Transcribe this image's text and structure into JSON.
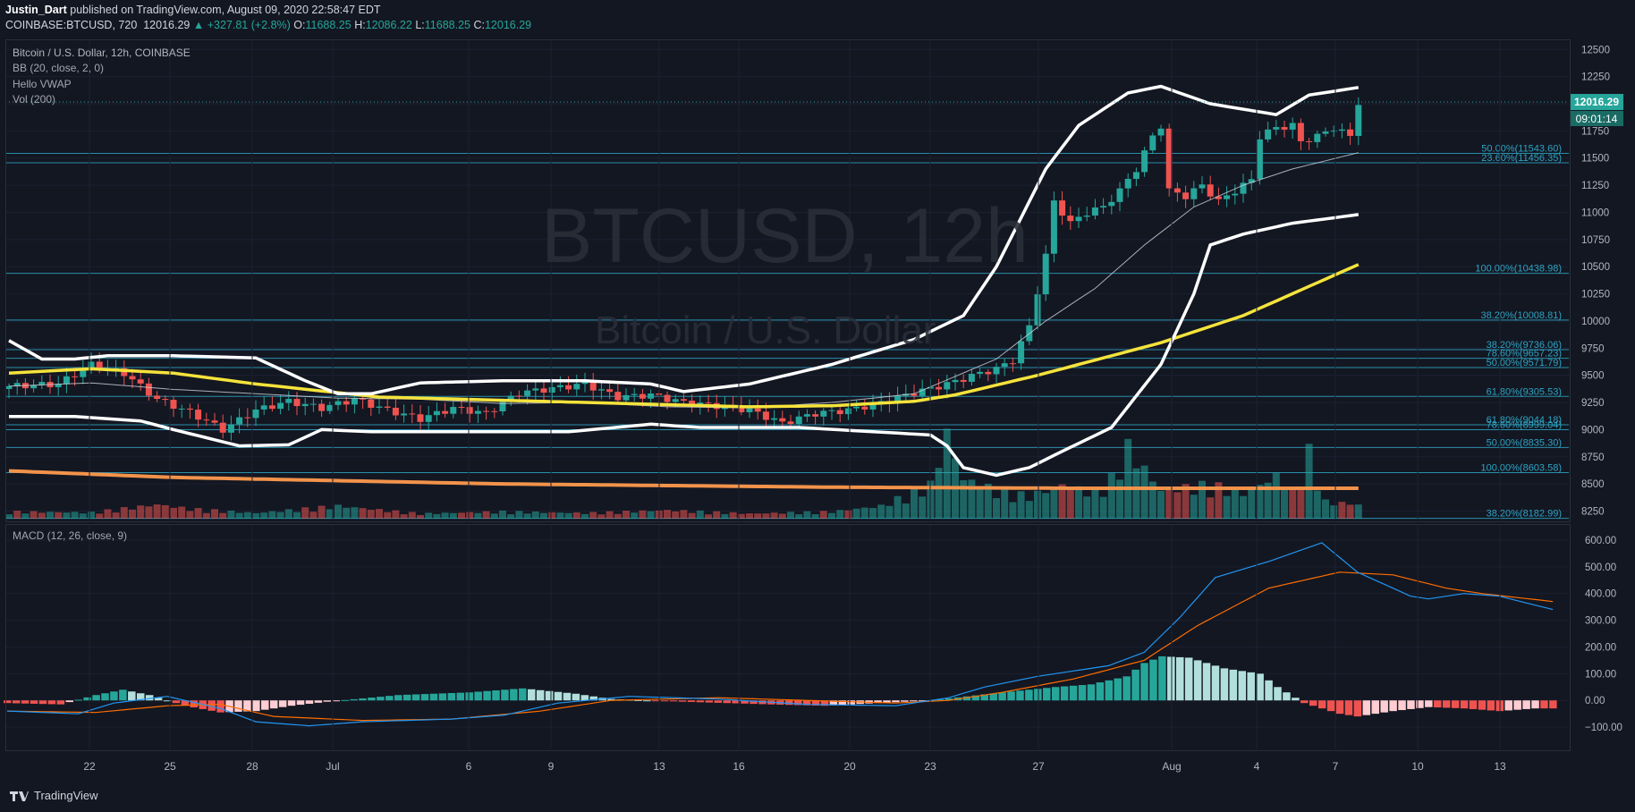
{
  "header": {
    "author": "Justin_Dart",
    "published": "published on TradingView.com, August 09, 2020 22:58:47 EDT",
    "symbol": "COINBASE:BTCUSD, 720",
    "last": "12016.29",
    "change": "▲ +327.81 (+2.8%)",
    "o_label": "O:",
    "o": "11688.25",
    "h_label": "H:",
    "h": "12086.22",
    "l_label": "L:",
    "l": "11688.25",
    "c_label": "C:",
    "c": "12016.29"
  },
  "legend": {
    "title": "Bitcoin / U.S. Dollar, 12h, COINBASE",
    "bb": "BB (20, close, 2, 0)",
    "vwap": "Hello VWAP",
    "vol": "Vol (200)",
    "macd": "MACD (12, 26, close, 9)"
  },
  "watermark": {
    "big": "BTCUSD, 12h",
    "small": "Bitcoin / U.S. Dollar"
  },
  "footer": {
    "brand": "TradingView"
  },
  "colors": {
    "up": "#26a69a",
    "down": "#ef5350",
    "fib": "#2ea3c2",
    "bb": "#ffffff",
    "ma": "#f5e33b",
    "vwap": "#f2934b",
    "macd": "#2196f3",
    "signal": "#ff6d00"
  },
  "chart_data": [
    {
      "type": "line",
      "title": "Bitcoin / U.S. Dollar, 12h, COINBASE",
      "ylim": [
        8180,
        12560
      ],
      "y_ticks": [
        12500,
        12250,
        12000,
        11750,
        11500,
        11250,
        11000,
        10750,
        10500,
        10250,
        10000,
        9750,
        9500,
        9250,
        9000,
        8750,
        8500,
        8250
      ],
      "x_ticks": [
        "22",
        "25",
        "28",
        "Jul",
        "6",
        "9",
        "13",
        "16",
        "20",
        "23",
        "27",
        "Aug",
        "4",
        "7",
        "10",
        "13"
      ],
      "price_label": "12016.29",
      "countdown_label": "09:01:14",
      "fib_levels": [
        {
          "label": "50.00%(11543.60)",
          "value": 11543.6
        },
        {
          "label": "23.60%(11456.35)",
          "value": 11456.35
        },
        {
          "label": "100.00%(10438.98)",
          "value": 10438.98
        },
        {
          "label": "38.20%(10008.81)",
          "value": 10008.81
        },
        {
          "label": "38.20%(9736.06)",
          "value": 9736.06
        },
        {
          "label": "78.60%(9657.23)",
          "value": 9657.23
        },
        {
          "label": "50.00%(9571.79)",
          "value": 9571.79
        },
        {
          "label": "61.80%(9305.53)",
          "value": 9305.53
        },
        {
          "label": "61.80%(9044.18)",
          "value": 9044.18
        },
        {
          "label": "78.60%(8999.04)",
          "value": 8999.04
        },
        {
          "label": "50.00%(8835.30)",
          "value": 8835.3
        },
        {
          "label": "100.00%(8603.58)",
          "value": 8603.58
        },
        {
          "label": "38.20%(8182.99)",
          "value": 8182.99
        }
      ],
      "candle_anchors": [
        [
          0,
          9400
        ],
        [
          6,
          9420
        ],
        [
          10,
          9600
        ],
        [
          14,
          9520
        ],
        [
          18,
          9280
        ],
        [
          22,
          9160
        ],
        [
          26,
          9000
        ],
        [
          30,
          9180
        ],
        [
          34,
          9260
        ],
        [
          38,
          9200
        ],
        [
          42,
          9280
        ],
        [
          46,
          9180
        ],
        [
          50,
          9100
        ],
        [
          54,
          9200
        ],
        [
          58,
          9150
        ],
        [
          62,
          9340
        ],
        [
          66,
          9380
        ],
        [
          70,
          9420
        ],
        [
          74,
          9300
        ],
        [
          78,
          9320
        ],
        [
          82,
          9250
        ],
        [
          86,
          9220
        ],
        [
          90,
          9180
        ],
        [
          94,
          9060
        ],
        [
          98,
          9150
        ],
        [
          102,
          9180
        ],
        [
          106,
          9250
        ],
        [
          110,
          9340
        ],
        [
          114,
          9420
        ],
        [
          118,
          9520
        ],
        [
          120,
          9560
        ],
        [
          122,
          9640
        ],
        [
          124,
          9950
        ],
        [
          126,
          10600
        ],
        [
          127,
          11100
        ],
        [
          129,
          10900
        ],
        [
          131,
          11000
        ],
        [
          133,
          11050
        ],
        [
          135,
          11200
        ],
        [
          137,
          11400
        ],
        [
          139,
          11700
        ],
        [
          140,
          11800
        ],
        [
          141,
          11200
        ],
        [
          143,
          11150
        ],
        [
          145,
          11250
        ],
        [
          147,
          11100
        ],
        [
          149,
          11200
        ],
        [
          151,
          11300
        ],
        [
          152,
          11700
        ],
        [
          154,
          11780
        ],
        [
          156,
          11800
        ],
        [
          157,
          11650
        ],
        [
          159,
          11700
        ],
        [
          161,
          11780
        ],
        [
          163,
          11700
        ],
        [
          164,
          12016.29
        ]
      ],
      "bb_upper_anchors": [
        [
          0,
          9820
        ],
        [
          4,
          9650
        ],
        [
          8,
          9650
        ],
        [
          12,
          9680
        ],
        [
          20,
          9680
        ],
        [
          30,
          9660
        ],
        [
          36,
          9450
        ],
        [
          40,
          9330
        ],
        [
          44,
          9330
        ],
        [
          50,
          9430
        ],
        [
          60,
          9450
        ],
        [
          70,
          9450
        ],
        [
          78,
          9420
        ],
        [
          82,
          9350
        ],
        [
          90,
          9420
        ],
        [
          100,
          9600
        ],
        [
          110,
          9830
        ],
        [
          116,
          10050
        ],
        [
          120,
          10500
        ],
        [
          126,
          11400
        ],
        [
          130,
          11800
        ],
        [
          136,
          12100
        ],
        [
          140,
          12160
        ],
        [
          146,
          12000
        ],
        [
          150,
          11950
        ],
        [
          154,
          11900
        ],
        [
          158,
          12080
        ],
        [
          164,
          12150
        ]
      ],
      "bb_lower_anchors": [
        [
          0,
          9120
        ],
        [
          8,
          9120
        ],
        [
          16,
          9080
        ],
        [
          20,
          9000
        ],
        [
          28,
          8850
        ],
        [
          34,
          8860
        ],
        [
          38,
          9000
        ],
        [
          44,
          8980
        ],
        [
          56,
          8980
        ],
        [
          68,
          8980
        ],
        [
          78,
          9050
        ],
        [
          84,
          9020
        ],
        [
          96,
          9020
        ],
        [
          112,
          8950
        ],
        [
          114,
          8850
        ],
        [
          116,
          8650
        ],
        [
          120,
          8580
        ],
        [
          124,
          8650
        ],
        [
          128,
          8800
        ],
        [
          134,
          9020
        ],
        [
          140,
          9600
        ],
        [
          144,
          10250
        ],
        [
          146,
          10700
        ],
        [
          150,
          10800
        ],
        [
          156,
          10900
        ],
        [
          164,
          10980
        ]
      ],
      "bb_mid_anchors": [
        [
          0,
          9400
        ],
        [
          10,
          9430
        ],
        [
          20,
          9370
        ],
        [
          30,
          9330
        ],
        [
          40,
          9290
        ],
        [
          50,
          9280
        ],
        [
          60,
          9240
        ],
        [
          70,
          9250
        ],
        [
          80,
          9210
        ],
        [
          90,
          9200
        ],
        [
          100,
          9250
        ],
        [
          110,
          9330
        ],
        [
          120,
          9650
        ],
        [
          126,
          10000
        ],
        [
          132,
          10300
        ],
        [
          138,
          10700
        ],
        [
          144,
          11050
        ],
        [
          150,
          11250
        ],
        [
          156,
          11400
        ],
        [
          164,
          11550
        ]
      ],
      "ma_anchors": [
        [
          0,
          9520
        ],
        [
          10,
          9560
        ],
        [
          20,
          9520
        ],
        [
          30,
          9420
        ],
        [
          45,
          9300
        ],
        [
          60,
          9270
        ],
        [
          75,
          9240
        ],
        [
          90,
          9210
        ],
        [
          100,
          9220
        ],
        [
          110,
          9260
        ],
        [
          115,
          9320
        ],
        [
          125,
          9500
        ],
        [
          130,
          9600
        ],
        [
          140,
          9800
        ],
        [
          150,
          10050
        ],
        [
          164,
          10520
        ]
      ],
      "vwap_anchors": [
        [
          0,
          8620
        ],
        [
          20,
          8560
        ],
        [
          60,
          8500
        ],
        [
          100,
          8470
        ],
        [
          130,
          8460
        ],
        [
          164,
          8460
        ]
      ],
      "volume_anchors": [
        [
          0,
          0.25
        ],
        [
          10,
          0.22
        ],
        [
          18,
          0.5
        ],
        [
          22,
          0.35
        ],
        [
          30,
          0.2
        ],
        [
          40,
          0.45
        ],
        [
          50,
          0.18
        ],
        [
          60,
          0.25
        ],
        [
          70,
          0.2
        ],
        [
          80,
          0.3
        ],
        [
          90,
          0.18
        ],
        [
          100,
          0.25
        ],
        [
          106,
          0.45
        ],
        [
          112,
          1.2
        ],
        [
          114,
          3.0
        ],
        [
          116,
          1.4
        ],
        [
          120,
          1.0
        ],
        [
          124,
          0.8
        ],
        [
          128,
          1.2
        ],
        [
          132,
          0.9
        ],
        [
          134,
          1.4
        ],
        [
          136,
          2.5
        ],
        [
          140,
          1.0
        ],
        [
          146,
          1.2
        ],
        [
          150,
          0.9
        ],
        [
          154,
          1.5
        ],
        [
          156,
          1.0
        ],
        [
          158,
          2.3
        ],
        [
          160,
          0.6
        ],
        [
          164,
          0.5
        ]
      ]
    },
    {
      "type": "line",
      "title": "MACD (12, 26, close, 9)",
      "ylim": [
        -170,
        640
      ],
      "y_ticks": [
        600,
        500,
        400,
        300,
        200,
        100,
        0,
        -100
      ],
      "series": [
        {
          "name": "MACD",
          "anchors": [
            [
              0,
              -40
            ],
            [
              8,
              -50
            ],
            [
              12,
              -10
            ],
            [
              18,
              15
            ],
            [
              24,
              -30
            ],
            [
              28,
              -80
            ],
            [
              34,
              -95
            ],
            [
              40,
              -80
            ],
            [
              50,
              -70
            ],
            [
              56,
              -55
            ],
            [
              62,
              -10
            ],
            [
              70,
              15
            ],
            [
              80,
              5
            ],
            [
              90,
              -15
            ],
            [
              100,
              -20
            ],
            [
              106,
              10
            ],
            [
              110,
              50
            ],
            [
              116,
              90
            ],
            [
              124,
              130
            ],
            [
              128,
              180
            ],
            [
              132,
              310
            ],
            [
              136,
              460
            ],
            [
              142,
              520
            ],
            [
              148,
              590
            ],
            [
              152,
              480
            ],
            [
              158,
              390
            ],
            [
              160,
              380
            ],
            [
              164,
              400
            ],
            [
              168,
              390
            ],
            [
              174,
              340
            ]
          ]
        },
        {
          "name": "Signal",
          "anchors": [
            [
              0,
              -40
            ],
            [
              10,
              -45
            ],
            [
              18,
              -20
            ],
            [
              24,
              -15
            ],
            [
              30,
              -60
            ],
            [
              40,
              -75
            ],
            [
              50,
              -70
            ],
            [
              60,
              -40
            ],
            [
              68,
              0
            ],
            [
              80,
              10
            ],
            [
              90,
              0
            ],
            [
              100,
              -10
            ],
            [
              106,
              0
            ],
            [
              112,
              30
            ],
            [
              120,
              80
            ],
            [
              128,
              150
            ],
            [
              134,
              280
            ],
            [
              142,
              420
            ],
            [
              150,
              480
            ],
            [
              156,
              470
            ],
            [
              162,
              420
            ],
            [
              166,
              400
            ],
            [
              174,
              370
            ]
          ]
        }
      ],
      "histogram_anchors": [
        [
          0,
          -10
        ],
        [
          6,
          -15
        ],
        [
          10,
          20
        ],
        [
          13,
          40
        ],
        [
          16,
          20
        ],
        [
          20,
          -20
        ],
        [
          24,
          -45
        ],
        [
          28,
          -40
        ],
        [
          32,
          -20
        ],
        [
          36,
          -5
        ],
        [
          44,
          20
        ],
        [
          52,
          30
        ],
        [
          58,
          45
        ],
        [
          64,
          25
        ],
        [
          68,
          5
        ],
        [
          76,
          -5
        ],
        [
          86,
          -15
        ],
        [
          92,
          -20
        ],
        [
          98,
          -10
        ],
        [
          104,
          0
        ],
        [
          108,
          15
        ],
        [
          112,
          30
        ],
        [
          118,
          50
        ],
        [
          122,
          60
        ],
        [
          126,
          90
        ],
        [
          128,
          140
        ],
        [
          130,
          165
        ],
        [
          133,
          160
        ],
        [
          137,
          120
        ],
        [
          141,
          100
        ],
        [
          143,
          50
        ],
        [
          146,
          -10
        ],
        [
          150,
          -50
        ],
        [
          152,
          -60
        ],
        [
          156,
          -40
        ],
        [
          160,
          -25
        ],
        [
          164,
          -30
        ],
        [
          168,
          -40
        ],
        [
          172,
          -30
        ]
      ]
    }
  ]
}
